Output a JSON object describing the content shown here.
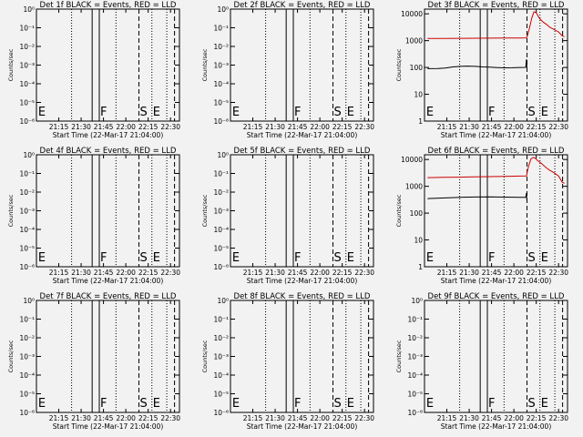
{
  "chart_data": [
    {
      "type": "line",
      "title": "Det 1f BLACK = Events, RED = LLD",
      "xlabel": "Start Time (22-Mar-17 21:04:00)",
      "ylabel": "Counts/sec",
      "x_ticks": [
        "21:15",
        "21:30",
        "21:45",
        "22:00",
        "22:15",
        "22:30"
      ],
      "y_ticks": [
        "10⁰",
        "10⁻¹",
        "10⁻²",
        "10⁻³",
        "10⁻⁴",
        "10⁻⁵",
        "10⁻⁶"
      ],
      "yscale": "log",
      "ylim": [
        1e-06,
        1
      ],
      "xlim_minutes": [
        -4,
        92
      ],
      "markers": [
        {
          "label": "E",
          "t": -3.5,
          "style": "none"
        },
        {
          "label": "",
          "t": 19.6,
          "style": "dotted"
        },
        {
          "label": "",
          "t": 33.4,
          "style": "solid"
        },
        {
          "label": "F",
          "t": 38.2,
          "style": "solid"
        },
        {
          "label": "",
          "t": 49.4,
          "style": "dotted"
        },
        {
          "label": "S",
          "t": 64.8,
          "style": "dashed"
        },
        {
          "label": "E",
          "t": 73.5,
          "style": "dotted"
        },
        {
          "label": "",
          "t": 83.5,
          "style": "dotted"
        },
        {
          "label": "",
          "t": 88.7,
          "style": "dashed"
        }
      ],
      "series": []
    },
    {
      "type": "line",
      "title": "Det 2f BLACK = Events, RED = LLD",
      "xlabel": "Start Time (22-Mar-17 21:04:00)",
      "ylabel": "Counts/sec",
      "x_ticks": [
        "21:15",
        "21:30",
        "21:45",
        "22:00",
        "22:15",
        "22:30"
      ],
      "y_ticks": [
        "10⁰",
        "10⁻¹",
        "10⁻²",
        "10⁻³",
        "10⁻⁴",
        "10⁻⁵",
        "10⁻⁶"
      ],
      "yscale": "log",
      "ylim": [
        1e-06,
        1
      ],
      "xlim_minutes": [
        -4,
        92
      ],
      "markers": [
        {
          "label": "E",
          "t": -3.5,
          "style": "none"
        },
        {
          "label": "",
          "t": 19.6,
          "style": "dotted"
        },
        {
          "label": "",
          "t": 33.4,
          "style": "solid"
        },
        {
          "label": "F",
          "t": 38.2,
          "style": "solid"
        },
        {
          "label": "",
          "t": 49.4,
          "style": "dotted"
        },
        {
          "label": "S",
          "t": 64.8,
          "style": "dashed"
        },
        {
          "label": "E",
          "t": 73.5,
          "style": "dotted"
        },
        {
          "label": "",
          "t": 83.5,
          "style": "dotted"
        },
        {
          "label": "",
          "t": 88.7,
          "style": "dashed"
        }
      ],
      "series": []
    },
    {
      "type": "line",
      "title": "Det 3f BLACK = Events, RED = LLD",
      "xlabel": "Start Time (22-Mar-17 21:04:00)",
      "ylabel": "Counts/sec",
      "x_ticks": [
        "21:15",
        "21:30",
        "21:45",
        "22:00",
        "22:15",
        "22:30"
      ],
      "y_ticks": [
        "1",
        "10",
        "100",
        "1000",
        "10000"
      ],
      "yscale": "log",
      "ylim": [
        1,
        15000
      ],
      "xlim_minutes": [
        -4,
        92
      ],
      "markers": [
        {
          "label": "E",
          "t": -3.5,
          "style": "none"
        },
        {
          "label": "",
          "t": 19.6,
          "style": "dotted"
        },
        {
          "label": "",
          "t": 33.4,
          "style": "solid"
        },
        {
          "label": "F",
          "t": 38.2,
          "style": "solid"
        },
        {
          "label": "",
          "t": 49.4,
          "style": "dotted"
        },
        {
          "label": "S",
          "t": 64.8,
          "style": "dashed"
        },
        {
          "label": "E",
          "t": 73.5,
          "style": "dotted"
        },
        {
          "label": "",
          "t": 83.5,
          "style": "dotted"
        },
        {
          "label": "",
          "t": 88.7,
          "style": "dashed"
        }
      ],
      "series": [
        {
          "color": "#cc0000",
          "points": [
            [
              -2,
              1200
            ],
            [
              10,
              1210
            ],
            [
              20,
              1220
            ],
            [
              30,
              1230
            ],
            [
              40,
              1240
            ],
            [
              50,
              1250
            ],
            [
              60,
              1260
            ],
            [
              64.5,
              1270
            ],
            [
              65.2,
              1600
            ],
            [
              66.5,
              3000
            ],
            [
              68,
              7000
            ],
            [
              69.5,
              12000
            ],
            [
              71,
              11000
            ],
            [
              73,
              7000
            ],
            [
              75.5,
              5000
            ],
            [
              78,
              4000
            ],
            [
              80,
              3200
            ],
            [
              83,
              2600
            ],
            [
              86,
              2100
            ],
            [
              88.5,
              1500
            ],
            [
              90,
              1400
            ]
          ]
        },
        {
          "color": "#000000",
          "points": [
            [
              -2,
              90
            ],
            [
              5,
              92
            ],
            [
              10,
              95
            ],
            [
              15,
              105
            ],
            [
              20,
              110
            ],
            [
              25,
              112
            ],
            [
              30,
              110
            ],
            [
              35,
              105
            ],
            [
              40,
              102
            ],
            [
              45,
              99
            ],
            [
              50,
              97
            ],
            [
              55,
              98
            ],
            [
              60,
              100
            ],
            [
              64,
              101
            ],
            [
              64.4,
              200
            ],
            [
              64.7,
              100
            ]
          ]
        }
      ]
    },
    {
      "type": "line",
      "title": "Det 4f BLACK = Events, RED = LLD",
      "xlabel": "Start Time (22-Mar-17 21:04:00)",
      "ylabel": "Counts/sec",
      "x_ticks": [
        "21:15",
        "21:30",
        "21:45",
        "22:00",
        "22:15",
        "22:30"
      ],
      "y_ticks": [
        "10⁰",
        "10⁻¹",
        "10⁻²",
        "10⁻³",
        "10⁻⁴",
        "10⁻⁵",
        "10⁻⁶"
      ],
      "yscale": "log",
      "ylim": [
        1e-06,
        1
      ],
      "xlim_minutes": [
        -4,
        92
      ],
      "markers": [
        {
          "label": "E",
          "t": -3.5,
          "style": "none"
        },
        {
          "label": "",
          "t": 19.6,
          "style": "dotted"
        },
        {
          "label": "",
          "t": 33.4,
          "style": "solid"
        },
        {
          "label": "F",
          "t": 38.2,
          "style": "solid"
        },
        {
          "label": "",
          "t": 49.4,
          "style": "dotted"
        },
        {
          "label": "S",
          "t": 64.8,
          "style": "dashed"
        },
        {
          "label": "E",
          "t": 73.5,
          "style": "dotted"
        },
        {
          "label": "",
          "t": 83.5,
          "style": "dotted"
        },
        {
          "label": "",
          "t": 88.7,
          "style": "dashed"
        }
      ],
      "series": []
    },
    {
      "type": "line",
      "title": "Det 5f BLACK = Events, RED = LLD",
      "xlabel": "Start Time (22-Mar-17 21:04:00)",
      "ylabel": "Counts/sec",
      "x_ticks": [
        "21:15",
        "21:30",
        "21:45",
        "22:00",
        "22:15",
        "22:30"
      ],
      "y_ticks": [
        "10⁰",
        "10⁻¹",
        "10⁻²",
        "10⁻³",
        "10⁻⁴",
        "10⁻⁵",
        "10⁻⁶"
      ],
      "yscale": "log",
      "ylim": [
        1e-06,
        1
      ],
      "xlim_minutes": [
        -4,
        92
      ],
      "markers": [
        {
          "label": "E",
          "t": -3.5,
          "style": "none"
        },
        {
          "label": "",
          "t": 19.6,
          "style": "dotted"
        },
        {
          "label": "",
          "t": 33.4,
          "style": "solid"
        },
        {
          "label": "F",
          "t": 38.2,
          "style": "solid"
        },
        {
          "label": "",
          "t": 49.4,
          "style": "dotted"
        },
        {
          "label": "S",
          "t": 64.8,
          "style": "dashed"
        },
        {
          "label": "E",
          "t": 73.5,
          "style": "dotted"
        },
        {
          "label": "",
          "t": 83.5,
          "style": "dotted"
        },
        {
          "label": "",
          "t": 88.7,
          "style": "dashed"
        }
      ],
      "series": []
    },
    {
      "type": "line",
      "title": "Det 6f BLACK = Events, RED = LLD",
      "xlabel": "Start Time (22-Mar-17 21:04:00)",
      "ylabel": "Counts/sec",
      "x_ticks": [
        "21:15",
        "21:30",
        "21:45",
        "22:00",
        "22:15",
        "22:30"
      ],
      "y_ticks": [
        "1",
        "10",
        "100",
        "1000",
        "10000"
      ],
      "yscale": "log",
      "ylim": [
        1,
        15000
      ],
      "xlim_minutes": [
        -4,
        92
      ],
      "markers": [
        {
          "label": "E",
          "t": -3.5,
          "style": "none"
        },
        {
          "label": "",
          "t": 19.6,
          "style": "dotted"
        },
        {
          "label": "",
          "t": 33.4,
          "style": "solid"
        },
        {
          "label": "F",
          "t": 38.2,
          "style": "solid"
        },
        {
          "label": "",
          "t": 49.4,
          "style": "dotted"
        },
        {
          "label": "S",
          "t": 64.8,
          "style": "dashed"
        },
        {
          "label": "E",
          "t": 73.5,
          "style": "dotted"
        },
        {
          "label": "",
          "t": 83.5,
          "style": "dotted"
        },
        {
          "label": "",
          "t": 88.7,
          "style": "dashed"
        }
      ],
      "series": [
        {
          "color": "#cc0000",
          "points": [
            [
              -2,
              2100
            ],
            [
              10,
              2150
            ],
            [
              20,
              2200
            ],
            [
              30,
              2250
            ],
            [
              40,
              2300
            ],
            [
              50,
              2350
            ],
            [
              60,
              2400
            ],
            [
              64.5,
              2450
            ],
            [
              65,
              3500
            ],
            [
              66,
              6000
            ],
            [
              67.5,
              10500
            ],
            [
              69,
              12000
            ],
            [
              70.5,
              11000
            ],
            [
              72,
              9000
            ],
            [
              74,
              7500
            ],
            [
              76,
              6000
            ],
            [
              78,
              4800
            ],
            [
              80,
              4000
            ],
            [
              83,
              3200
            ],
            [
              86,
              2400
            ],
            [
              88.5,
              1400
            ],
            [
              90,
              1300
            ]
          ]
        },
        {
          "color": "#000000",
          "points": [
            [
              -2,
              350
            ],
            [
              10,
              370
            ],
            [
              20,
              390
            ],
            [
              30,
              400
            ],
            [
              40,
              405
            ],
            [
              50,
              395
            ],
            [
              60,
              390
            ],
            [
              64,
              385
            ],
            [
              64.4,
              560
            ],
            [
              64.7,
              300
            ]
          ]
        }
      ]
    },
    {
      "type": "line",
      "title": "Det 7f BLACK = Events, RED = LLD",
      "xlabel": "Start Time (22-Mar-17 21:04:00)",
      "ylabel": "Counts/sec",
      "x_ticks": [
        "21:15",
        "21:30",
        "21:45",
        "22:00",
        "22:15",
        "22:30"
      ],
      "y_ticks": [
        "10⁰",
        "10⁻¹",
        "10⁻²",
        "10⁻³",
        "10⁻⁴",
        "10⁻⁵",
        "10⁻⁶"
      ],
      "yscale": "log",
      "ylim": [
        1e-06,
        1
      ],
      "xlim_minutes": [
        -4,
        92
      ],
      "markers": [
        {
          "label": "E",
          "t": -3.5,
          "style": "none"
        },
        {
          "label": "",
          "t": 19.6,
          "style": "dotted"
        },
        {
          "label": "",
          "t": 33.4,
          "style": "solid"
        },
        {
          "label": "F",
          "t": 38.2,
          "style": "solid"
        },
        {
          "label": "",
          "t": 49.4,
          "style": "dotted"
        },
        {
          "label": "S",
          "t": 64.8,
          "style": "dashed"
        },
        {
          "label": "E",
          "t": 73.5,
          "style": "dotted"
        },
        {
          "label": "",
          "t": 83.5,
          "style": "dotted"
        },
        {
          "label": "",
          "t": 88.7,
          "style": "dashed"
        }
      ],
      "series": []
    },
    {
      "type": "line",
      "title": "Det 8f BLACK = Events, RED = LLD",
      "xlabel": "Start Time (22-Mar-17 21:04:00)",
      "ylabel": "Counts/sec",
      "x_ticks": [
        "21:15",
        "21:30",
        "21:45",
        "22:00",
        "22:15",
        "22:30"
      ],
      "y_ticks": [
        "10⁰",
        "10⁻¹",
        "10⁻²",
        "10⁻³",
        "10⁻⁴",
        "10⁻⁵",
        "10⁻⁶"
      ],
      "yscale": "log",
      "ylim": [
        1e-06,
        1
      ],
      "xlim_minutes": [
        -4,
        92
      ],
      "markers": [
        {
          "label": "E",
          "t": -3.5,
          "style": "none"
        },
        {
          "label": "",
          "t": 19.6,
          "style": "dotted"
        },
        {
          "label": "",
          "t": 33.4,
          "style": "solid"
        },
        {
          "label": "F",
          "t": 38.2,
          "style": "solid"
        },
        {
          "label": "",
          "t": 49.4,
          "style": "dotted"
        },
        {
          "label": "S",
          "t": 64.8,
          "style": "dashed"
        },
        {
          "label": "E",
          "t": 73.5,
          "style": "dotted"
        },
        {
          "label": "",
          "t": 83.5,
          "style": "dotted"
        },
        {
          "label": "",
          "t": 88.7,
          "style": "dashed"
        }
      ],
      "series": []
    },
    {
      "type": "line",
      "title": "Det 9f BLACK = Events, RED = LLD",
      "xlabel": "Start Time (22-Mar-17 21:04:00)",
      "ylabel": "Counts/sec",
      "x_ticks": [
        "21:15",
        "21:30",
        "21:45",
        "22:00",
        "22:15",
        "22:30"
      ],
      "y_ticks": [
        "10⁰",
        "10⁻¹",
        "10⁻²",
        "10⁻³",
        "10⁻⁴",
        "10⁻⁵",
        "10⁻⁶"
      ],
      "yscale": "log",
      "ylim": [
        1e-06,
        1
      ],
      "xlim_minutes": [
        -4,
        92
      ],
      "markers": [
        {
          "label": "E",
          "t": -3.5,
          "style": "none"
        },
        {
          "label": "",
          "t": 19.6,
          "style": "dotted"
        },
        {
          "label": "",
          "t": 33.4,
          "style": "solid"
        },
        {
          "label": "F",
          "t": 38.2,
          "style": "solid"
        },
        {
          "label": "",
          "t": 49.4,
          "style": "dotted"
        },
        {
          "label": "S",
          "t": 64.8,
          "style": "dashed"
        },
        {
          "label": "E",
          "t": 73.5,
          "style": "dotted"
        },
        {
          "label": "",
          "t": 83.5,
          "style": "dotted"
        },
        {
          "label": "",
          "t": 88.7,
          "style": "dashed"
        }
      ],
      "series": []
    }
  ]
}
